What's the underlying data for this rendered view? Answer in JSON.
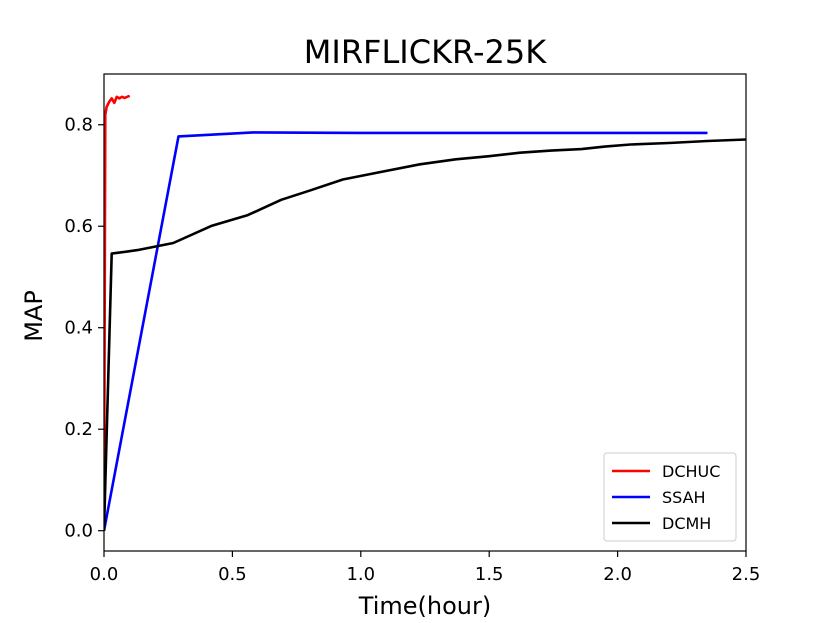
{
  "chart_data": {
    "type": "line",
    "title": "MIRFLICKR-25K",
    "xlabel": "Time(hour)",
    "ylabel": "MAP",
    "xlim": [
      0,
      2.5
    ],
    "ylim": [
      -0.04,
      0.9
    ],
    "xticks": [
      0.0,
      0.5,
      1.0,
      1.5,
      2.0,
      2.5
    ],
    "xtick_labels": [
      "0.0",
      "0.5",
      "1.0",
      "1.5",
      "2.0",
      "2.5"
    ],
    "yticks": [
      0.0,
      0.2,
      0.4,
      0.6,
      0.8
    ],
    "ytick_labels": [
      "0.0",
      "0.2",
      "0.4",
      "0.6",
      "0.8"
    ],
    "grid": false,
    "legend_position": "bottom-right",
    "series": [
      {
        "name": "DCHUC",
        "color": "#ff0000",
        "x": [
          0.0,
          0.005,
          0.01,
          0.02,
          0.03,
          0.04,
          0.05,
          0.06,
          0.07,
          0.08,
          0.1
        ],
        "y": [
          0.0,
          0.82,
          0.835,
          0.845,
          0.852,
          0.843,
          0.855,
          0.852,
          0.855,
          0.853,
          0.857
        ]
      },
      {
        "name": "SSAH",
        "color": "#0000ff",
        "x": [
          0.0,
          0.29,
          0.58,
          1.0,
          1.5,
          2.0,
          2.35
        ],
        "y": [
          0.0,
          0.777,
          0.785,
          0.784,
          0.784,
          0.784,
          0.784
        ]
      },
      {
        "name": "DCMH",
        "color": "#000000",
        "x": [
          0.0,
          0.03,
          0.13,
          0.27,
          0.42,
          0.56,
          0.69,
          0.8,
          0.93,
          1.08,
          1.23,
          1.37,
          1.5,
          1.62,
          1.74,
          1.86,
          1.95,
          2.05,
          2.2,
          2.35,
          2.5
        ],
        "y": [
          0.0,
          0.546,
          0.553,
          0.567,
          0.601,
          0.622,
          0.652,
          0.67,
          0.692,
          0.707,
          0.722,
          0.732,
          0.738,
          0.745,
          0.749,
          0.752,
          0.757,
          0.761,
          0.764,
          0.768,
          0.771
        ]
      }
    ]
  }
}
